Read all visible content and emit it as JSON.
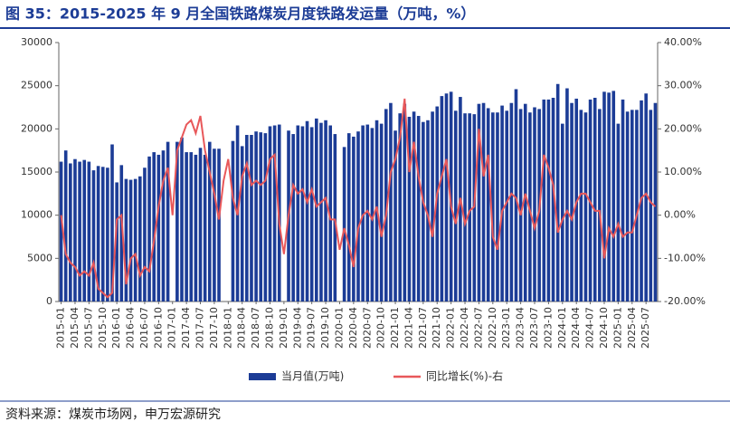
{
  "title": "图 35：2015-2025 年 9 月全国铁路煤炭月度铁路发运量（万吨，%）",
  "source": "资料来源：煤炭市场网，申万宏源研究",
  "chart_data": {
    "type": "bar",
    "categories": [
      "2015-01",
      null,
      null,
      "2015-04",
      null,
      null,
      "2015-07",
      null,
      null,
      "2015-10",
      null,
      null,
      "2016-01",
      null,
      null,
      "2016-04",
      null,
      null,
      "2016-07",
      null,
      null,
      "2016-10",
      null,
      null,
      "2017-01",
      null,
      null,
      "2017-04",
      null,
      null,
      "2017-07",
      null,
      null,
      "2017-10",
      null,
      null,
      "2018-01",
      null,
      null,
      "2018-04",
      null,
      null,
      "2018-07",
      null,
      null,
      "2018-10",
      null,
      null,
      "2019-01",
      null,
      null,
      "2019-04",
      null,
      null,
      "2019-07",
      null,
      null,
      "2019-10",
      null,
      null,
      "2020-01",
      null,
      null,
      "2020-04",
      null,
      null,
      "2020-07",
      null,
      null,
      "2020-10",
      null,
      null,
      "2021-01",
      null,
      null,
      "2021-04",
      null,
      null,
      "2021-07",
      null,
      null,
      "2021-10",
      null,
      null,
      "2022-01",
      null,
      null,
      "2022-04",
      null,
      null,
      "2022-07",
      null,
      null,
      "2022-10",
      null,
      null,
      "2023-01",
      null,
      null,
      "2023-04",
      null,
      null,
      "2023-07",
      null,
      null,
      "2023-10",
      null,
      null,
      "2024-01",
      null,
      null,
      "2024-04",
      null,
      null,
      "2024-07",
      null,
      null,
      "2024-10",
      null,
      null,
      "2025-01",
      null,
      null,
      "2025-04",
      null,
      null,
      "2025-07",
      null,
      null
    ],
    "series": [
      {
        "name": "当月值(万吨)",
        "color": "#1c3c96",
        "values": [
          16200,
          17500,
          16000,
          16500,
          16200,
          16400,
          16200,
          15200,
          15700,
          15600,
          15500,
          18200,
          13800,
          15800,
          14200,
          14100,
          14200,
          14500,
          15500,
          16800,
          17300,
          17000,
          17500,
          18500,
          null,
          18500,
          19000,
          17300,
          17300,
          17000,
          17800,
          17000,
          18500,
          17700,
          17700,
          null,
          null,
          18600,
          20400,
          18000,
          19300,
          19300,
          19700,
          19600,
          19500,
          20300,
          20400,
          20500,
          null,
          19800,
          19400,
          20400,
          20300,
          20900,
          20200,
          21200,
          20700,
          21000,
          20400,
          19400,
          null,
          17900,
          19500,
          19100,
          19700,
          20400,
          20500,
          20100,
          21000,
          20600,
          22300,
          23000,
          19800,
          21800,
          22900,
          21400,
          22000,
          21500,
          20800,
          21000,
          22000,
          22600,
          23800,
          24100,
          24300,
          22100,
          23700,
          21800,
          21800,
          21700,
          22900,
          23000,
          22400,
          21900,
          21900,
          22700,
          22100,
          23000,
          24600,
          22300,
          22900,
          21900,
          22500,
          22300,
          23400,
          23400,
          23600,
          25200,
          20600,
          24700,
          23000,
          23500,
          22200,
          21900,
          23400,
          23600,
          22300,
          24300,
          24200,
          24400,
          20600,
          23400,
          22000,
          22200,
          22200,
          23300,
          24100,
          22200,
          23000
        ]
      },
      {
        "name": "同比增长(%)-右",
        "color": "#e8585a",
        "type": "line",
        "axis": "y2",
        "values": [
          0,
          -9,
          -11,
          -12,
          -14,
          -13,
          -14,
          -11,
          -17,
          -18,
          -19,
          -18,
          -1,
          0,
          -16,
          -10,
          -9,
          -14,
          -12,
          -13,
          -6,
          2,
          8,
          11,
          0,
          15,
          18,
          21,
          22,
          19,
          23,
          15,
          10,
          5,
          -1,
          8,
          13,
          4,
          0,
          9,
          12,
          7,
          8,
          7,
          8,
          13,
          14,
          -2,
          -9,
          0,
          7,
          5,
          6,
          3,
          6,
          2,
          3,
          4,
          -1,
          -1,
          -8,
          -3,
          -7,
          -12,
          -3,
          0,
          1,
          -1,
          2,
          -5,
          0,
          10,
          13,
          18,
          27,
          10,
          17,
          9,
          3,
          0,
          -5,
          5,
          9,
          13,
          2,
          -2,
          4,
          -2,
          1,
          2,
          20,
          9,
          14,
          -5,
          -8,
          1,
          3,
          5,
          4,
          0,
          5,
          1,
          -3,
          1,
          14,
          11,
          7,
          -4,
          -1,
          1,
          -1,
          3,
          5,
          5,
          3,
          1,
          1,
          -10,
          -3,
          -5,
          -2,
          -5,
          -4,
          -4,
          0,
          4,
          5,
          3,
          2
        ]
      }
    ],
    "ylim": [
      0,
      30000
    ],
    "yticks": [
      0,
      5000,
      10000,
      15000,
      20000,
      25000,
      30000
    ],
    "y2lim": [
      -20,
      40
    ],
    "y2ticks": [
      {
        "value": -20,
        "label": "-20.00%"
      },
      {
        "value": -10,
        "label": "-10.00%"
      },
      {
        "value": 0,
        "label": "0.00%"
      },
      {
        "value": 10,
        "label": "10.00%"
      },
      {
        "value": 20,
        "label": "20.00%"
      },
      {
        "value": 30,
        "label": "30.00%"
      },
      {
        "value": 40,
        "label": "40.00%"
      }
    ],
    "legend": "bottom"
  }
}
